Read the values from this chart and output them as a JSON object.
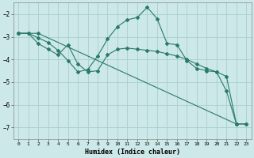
{
  "xlabel": "Humidex (Indice chaleur)",
  "bg_color": "#cce8e8",
  "grid_color": "#aacece",
  "line_color": "#2a7a6a",
  "xlim": [
    -0.5,
    23.5
  ],
  "ylim": [
    -7.5,
    -1.5
  ],
  "yticks": [
    -7,
    -6,
    -5,
    -4,
    -3,
    -2
  ],
  "xticks": [
    0,
    1,
    2,
    3,
    4,
    5,
    6,
    7,
    8,
    9,
    10,
    11,
    12,
    13,
    14,
    15,
    16,
    17,
    18,
    19,
    20,
    21,
    22,
    23
  ],
  "line1_x": [
    0,
    1,
    2,
    3,
    4,
    5,
    6,
    7,
    8,
    9,
    10,
    11,
    12,
    13,
    14,
    15,
    16,
    17,
    18,
    19,
    20,
    21,
    22
  ],
  "line1_y": [
    -2.85,
    -2.85,
    -3.3,
    -3.55,
    -3.8,
    -3.35,
    -4.2,
    -4.55,
    -4.5,
    -3.8,
    -3.55,
    -3.5,
    -3.55,
    -3.6,
    -3.65,
    -3.75,
    -3.85,
    -4.0,
    -4.2,
    -4.4,
    -4.55,
    -4.75,
    -6.85
  ],
  "line2_x": [
    0,
    1,
    2,
    3,
    4,
    5,
    6,
    7,
    8,
    9,
    10,
    11,
    12,
    13,
    14,
    15,
    16,
    17,
    18,
    19,
    20,
    21,
    22,
    23
  ],
  "line2_y": [
    -2.85,
    -2.85,
    -3.05,
    -3.25,
    -3.6,
    -4.05,
    -4.55,
    -4.45,
    -3.85,
    -3.1,
    -2.55,
    -2.25,
    -2.15,
    -1.7,
    -2.2,
    -3.3,
    -3.35,
    -4.05,
    -4.4,
    -4.5,
    -4.55,
    -5.4,
    -6.85,
    -6.85
  ],
  "line3_x": [
    0,
    2,
    22,
    23
  ],
  "line3_y": [
    -2.85,
    -2.85,
    -6.85,
    -6.85
  ]
}
